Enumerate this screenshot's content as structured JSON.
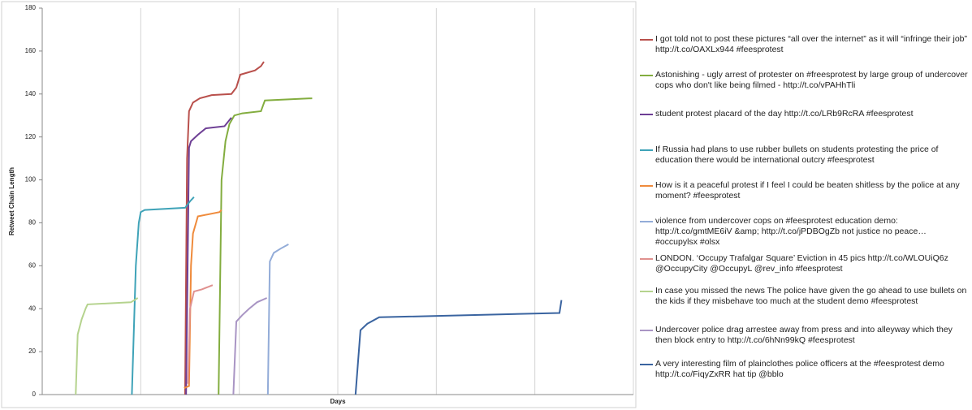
{
  "chart_data": {
    "type": "line",
    "y_label": "Retweet Chain Length",
    "x_label": "Days",
    "ylim": [
      0,
      180
    ],
    "yticks": [
      0,
      20,
      40,
      60,
      80,
      100,
      120,
      140,
      160,
      180
    ],
    "xlim": [
      0,
      6
    ],
    "x_gridlines": [
      1,
      2,
      3,
      4,
      5,
      6
    ],
    "series": [
      {
        "name": "I got told not to post these pictures “all over the internet” as it will “infringe their job” http://t.co/OAXLx944 #feesprotest",
        "color": "#b9504c",
        "x": [
          1.45,
          1.47,
          1.49,
          1.53,
          1.6,
          1.72,
          1.92,
          1.97,
          2.01,
          2.16,
          2.22,
          2.25
        ],
        "values": [
          0,
          110,
          132,
          136,
          138,
          139.5,
          140,
          143,
          149,
          151,
          153,
          155
        ]
      },
      {
        "name": "Astonishing - ugly arrest of protester on #freesprotest by large group of undercover cops who don't like being filmed - http://t.co/vPAHhTli",
        "color": "#83ad3f",
        "x": [
          1.79,
          1.82,
          1.86,
          1.9,
          1.95,
          2.03,
          2.22,
          2.26,
          2.74
        ],
        "values": [
          0,
          100,
          118,
          126,
          130,
          131,
          132,
          137,
          138
        ]
      },
      {
        "name": "student protest placard of the day http://t.co/LRb9RcRA #feesprotest",
        "color": "#6d3e94",
        "x": [
          1.46,
          1.49,
          1.51,
          1.58,
          1.66,
          1.85,
          1.92
        ],
        "values": [
          0,
          115,
          118,
          121,
          124,
          125,
          129
        ]
      },
      {
        "name": "If Russia had plans to use rubber bullets on students protesting the price of education there would be international outcry #feesprotest",
        "color": "#3fa3b8",
        "x": [
          0.91,
          0.95,
          0.98,
          1.0,
          1.04,
          1.45,
          1.5,
          1.54
        ],
        "values": [
          0,
          60,
          80,
          85,
          86,
          87,
          90,
          92
        ]
      },
      {
        "name": "How is it a peaceful protest if I feel I could be beaten shitless by the police at any moment? #feesprotest",
        "color": "#ef8b3c",
        "x": [
          1.44,
          1.49,
          1.51,
          1.53,
          1.58,
          1.8,
          1.82
        ],
        "values": [
          3,
          4,
          60,
          75,
          83,
          85,
          86
        ]
      },
      {
        "name": "violence from undercover cops on #feesprotest education demo: http://t.co/gmtME6iV &amp; http://t.co/jPDBOgZb not justice no peace… #occupylsx #olsx",
        "color": "#93acd8",
        "x": [
          2.29,
          2.31,
          2.35,
          2.42,
          2.5
        ],
        "values": [
          0,
          62,
          66,
          68,
          70
        ]
      },
      {
        "name": "LONDON. ‘Occupy Trafalgar Square’ Eviction in 45 pics http://t.co/WLOUiQ6z @OccupyCity @OccupyL @rev_info #feesprotest",
        "color": "#e0918f",
        "x": [
          1.48,
          1.5,
          1.54,
          1.62,
          1.73
        ],
        "values": [
          5,
          40,
          48,
          49,
          51
        ]
      },
      {
        "name": "In case you missed the news The police have given the go ahead to use bullets on the kids if they misbehave too much at the student demo #feesprotest",
        "color": "#b5d38e",
        "x": [
          0.34,
          0.36,
          0.4,
          0.44,
          0.46,
          0.9,
          0.97
        ],
        "values": [
          0,
          28,
          35,
          40,
          42,
          43,
          45
        ]
      },
      {
        "name": "Undercover police drag arrestee away from press and into alleyway which they then block entry to http://t.co/6hNn99kQ #feesprotest",
        "color": "#a995c4",
        "x": [
          1.94,
          1.97,
          2.03,
          2.1,
          2.18,
          2.28
        ],
        "values": [
          0,
          34,
          37,
          40,
          43,
          45
        ]
      },
      {
        "name": "A very interesting film of plainclothes police officers at the #feesprotest demo http://t.co/FiqyZxRR hat tip @bblo",
        "color": "#3a64a0",
        "x": [
          3.18,
          3.23,
          3.3,
          3.42,
          5.25,
          5.27
        ],
        "values": [
          0,
          30,
          33,
          36,
          38,
          44
        ]
      }
    ]
  }
}
